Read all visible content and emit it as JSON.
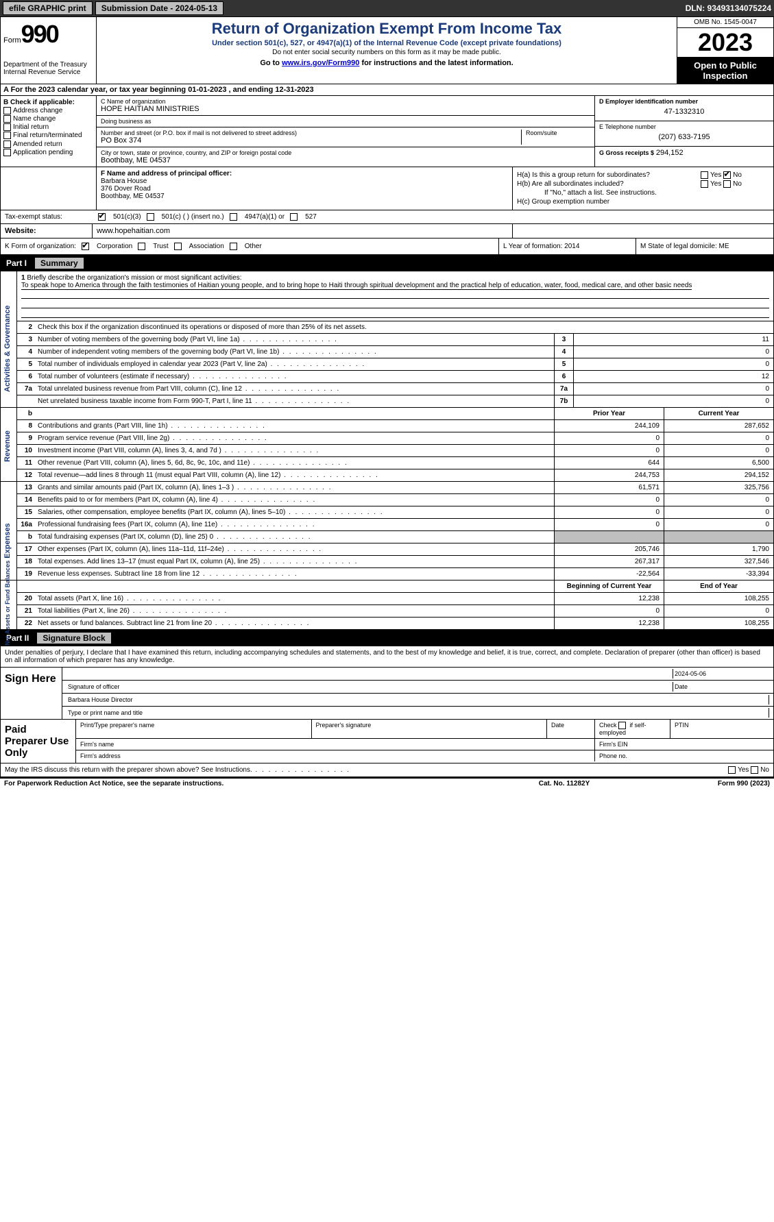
{
  "top": {
    "efile": "efile GRAPHIC print",
    "submission": "Submission Date - 2024-05-13",
    "dln": "DLN: 93493134075224"
  },
  "header": {
    "form_label": "Form",
    "form_number": "990",
    "title": "Return of Organization Exempt From Income Tax",
    "subtitle1": "Under section 501(c), 527, or 4947(a)(1) of the Internal Revenue Code (except private foundations)",
    "subtitle2": "Do not enter social security numbers on this form as it may be made public.",
    "goto_pre": "Go to ",
    "goto_link": "www.irs.gov/Form990",
    "goto_post": " for instructions and the latest information.",
    "dept": "Department of the Treasury",
    "irs": "Internal Revenue Service",
    "omb": "OMB No. 1545-0047",
    "year": "2023",
    "open": "Open to Public Inspection"
  },
  "rowA": "A For the 2023 calendar year, or tax year beginning 01-01-2023   , and ending 12-31-2023",
  "colB": {
    "label": "B Check if applicable:",
    "items": [
      "Address change",
      "Name change",
      "Initial return",
      "Final return/terminated",
      "Amended return",
      "Application pending"
    ]
  },
  "colC": {
    "name_lbl": "C Name of organization",
    "name": "HOPE HAITIAN MINISTRIES",
    "dba_lbl": "Doing business as",
    "dba": "",
    "addr_lbl": "Number and street (or P.O. box if mail is not delivered to street address)",
    "addr": "PO Box 374",
    "room_lbl": "Room/suite",
    "city_lbl": "City or town, state or province, country, and ZIP or foreign postal code",
    "city": "Boothbay, ME  04537"
  },
  "colD": {
    "ein_lbl": "D Employer identification number",
    "ein": "47-1332310",
    "tel_lbl": "E Telephone number",
    "tel": "(207) 633-7195",
    "gross_lbl": "G Gross receipts $",
    "gross": "294,152"
  },
  "rowF": {
    "lbl": "F  Name and address of principal officer:",
    "name": "Barbara House",
    "addr1": "376 Dover Road",
    "addr2": "Boothbay, ME  04537"
  },
  "rowH": {
    "ha": "H(a)  Is this a group return for subordinates?",
    "hb": "H(b)  Are all subordinates included?",
    "hb_note": "If \"No,\" attach a list. See instructions.",
    "hc": "H(c)  Group exemption number",
    "yes": "Yes",
    "no": "No"
  },
  "rowI": {
    "lbl": "Tax-exempt status:",
    "opts": [
      "501(c)(3)",
      "501(c) (  ) (insert no.)",
      "4947(a)(1) or",
      "527"
    ]
  },
  "rowJ": {
    "lbl": "Website:",
    "val": "www.hopehaitian.com"
  },
  "rowK": {
    "lbl": "K Form of organization:",
    "opts": [
      "Corporation",
      "Trust",
      "Association",
      "Other"
    ],
    "l_lbl": "L Year of formation:",
    "l_val": "2014",
    "m_lbl": "M State of legal domicile:",
    "m_val": "ME"
  },
  "partI": {
    "num": "Part I",
    "title": "Summary"
  },
  "mission": {
    "n": "1",
    "lbl": "Briefly describe the organization's mission or most significant activities:",
    "text": "To speak hope to America through the faith testimonies of Haitian young people, and to bring hope to Haiti through spiritual development and the practical help of education, water, food, medical care, and other basic needs"
  },
  "gov_rows": [
    {
      "n": "2",
      "t": "Check this box    if the organization discontinued its operations or disposed of more than 25% of its net assets.",
      "cn": "",
      "cv": ""
    },
    {
      "n": "3",
      "t": "Number of voting members of the governing body (Part VI, line 1a)",
      "cn": "3",
      "cv": "11"
    },
    {
      "n": "4",
      "t": "Number of independent voting members of the governing body (Part VI, line 1b)",
      "cn": "4",
      "cv": "0"
    },
    {
      "n": "5",
      "t": "Total number of individuals employed in calendar year 2023 (Part V, line 2a)",
      "cn": "5",
      "cv": "0"
    },
    {
      "n": "6",
      "t": "Total number of volunteers (estimate if necessary)",
      "cn": "6",
      "cv": "12"
    },
    {
      "n": "7a",
      "t": "Total unrelated business revenue from Part VIII, column (C), line 12",
      "cn": "7a",
      "cv": "0"
    },
    {
      "n": "",
      "t": "Net unrelated business taxable income from Form 990-T, Part I, line 11",
      "cn": "7b",
      "cv": "0"
    }
  ],
  "rev_hdr": {
    "n": "b",
    "c1": "Prior Year",
    "c2": "Current Year"
  },
  "rev_rows": [
    {
      "n": "8",
      "t": "Contributions and grants (Part VIII, line 1h)",
      "c1": "244,109",
      "c2": "287,652"
    },
    {
      "n": "9",
      "t": "Program service revenue (Part VIII, line 2g)",
      "c1": "0",
      "c2": "0"
    },
    {
      "n": "10",
      "t": "Investment income (Part VIII, column (A), lines 3, 4, and 7d )",
      "c1": "0",
      "c2": "0"
    },
    {
      "n": "11",
      "t": "Other revenue (Part VIII, column (A), lines 5, 6d, 8c, 9c, 10c, and 11e)",
      "c1": "644",
      "c2": "6,500"
    },
    {
      "n": "12",
      "t": "Total revenue—add lines 8 through 11 (must equal Part VIII, column (A), line 12)",
      "c1": "244,753",
      "c2": "294,152"
    }
  ],
  "exp_rows": [
    {
      "n": "13",
      "t": "Grants and similar amounts paid (Part IX, column (A), lines 1–3 )",
      "c1": "61,571",
      "c2": "325,756"
    },
    {
      "n": "14",
      "t": "Benefits paid to or for members (Part IX, column (A), line 4)",
      "c1": "0",
      "c2": "0"
    },
    {
      "n": "15",
      "t": "Salaries, other compensation, employee benefits (Part IX, column (A), lines 5–10)",
      "c1": "0",
      "c2": "0"
    },
    {
      "n": "16a",
      "t": "Professional fundraising fees (Part IX, column (A), line 11e)",
      "c1": "0",
      "c2": "0"
    },
    {
      "n": "b",
      "t": "Total fundraising expenses (Part IX, column (D), line 25) 0",
      "c1": "",
      "c2": "",
      "shade": true
    },
    {
      "n": "17",
      "t": "Other expenses (Part IX, column (A), lines 11a–11d, 11f–24e)",
      "c1": "205,746",
      "c2": "1,790"
    },
    {
      "n": "18",
      "t": "Total expenses. Add lines 13–17 (must equal Part IX, column (A), line 25)",
      "c1": "267,317",
      "c2": "327,546"
    },
    {
      "n": "19",
      "t": "Revenue less expenses. Subtract line 18 from line 12",
      "c1": "-22,564",
      "c2": "-33,394"
    }
  ],
  "na_hdr": {
    "c1": "Beginning of Current Year",
    "c2": "End of Year"
  },
  "na_rows": [
    {
      "n": "20",
      "t": "Total assets (Part X, line 16)",
      "c1": "12,238",
      "c2": "108,255"
    },
    {
      "n": "21",
      "t": "Total liabilities (Part X, line 26)",
      "c1": "0",
      "c2": "0"
    },
    {
      "n": "22",
      "t": "Net assets or fund balances. Subtract line 21 from line 20",
      "c1": "12,238",
      "c2": "108,255"
    }
  ],
  "sidetabs": {
    "gov": "Activities & Governance",
    "rev": "Revenue",
    "exp": "Expenses",
    "na": "Net Assets or Fund Balances"
  },
  "partII": {
    "num": "Part II",
    "title": "Signature Block"
  },
  "sig_intro": "Under penalties of perjury, I declare that I have examined this return, including accompanying schedules and statements, and to the best of my knowledge and belief, it is true, correct, and complete. Declaration of preparer (other than officer) is based on all information of which preparer has any knowledge.",
  "sign": {
    "here": "Sign Here",
    "sig_lbl": "Signature of officer",
    "date": "2024-05-06",
    "name": "Barbara House  Director",
    "name_lbl": "Type or print name and title"
  },
  "prep": {
    "lbl": "Paid Preparer Use Only",
    "r1": {
      "c1": "Print/Type preparer's name",
      "c2": "Preparer's signature",
      "c3": "Date",
      "c4": "Check     if self-employed",
      "c5": "PTIN"
    },
    "r2": {
      "c1": "Firm's name",
      "c2": "Firm's EIN"
    },
    "r3": {
      "c1": "Firm's address",
      "c2": "Phone no."
    }
  },
  "foot": {
    "q": "May the IRS discuss this return with the preparer shown above? See Instructions.",
    "yes": "Yes",
    "no": "No",
    "pra": "For Paperwork Reduction Act Notice, see the separate instructions.",
    "cat": "Cat. No. 11282Y",
    "form": "Form 990 (2023)"
  },
  "style": {
    "heading_color": "#1a3a7a",
    "shade_color": "#bfbfbf",
    "link_color": "#0000cc"
  }
}
